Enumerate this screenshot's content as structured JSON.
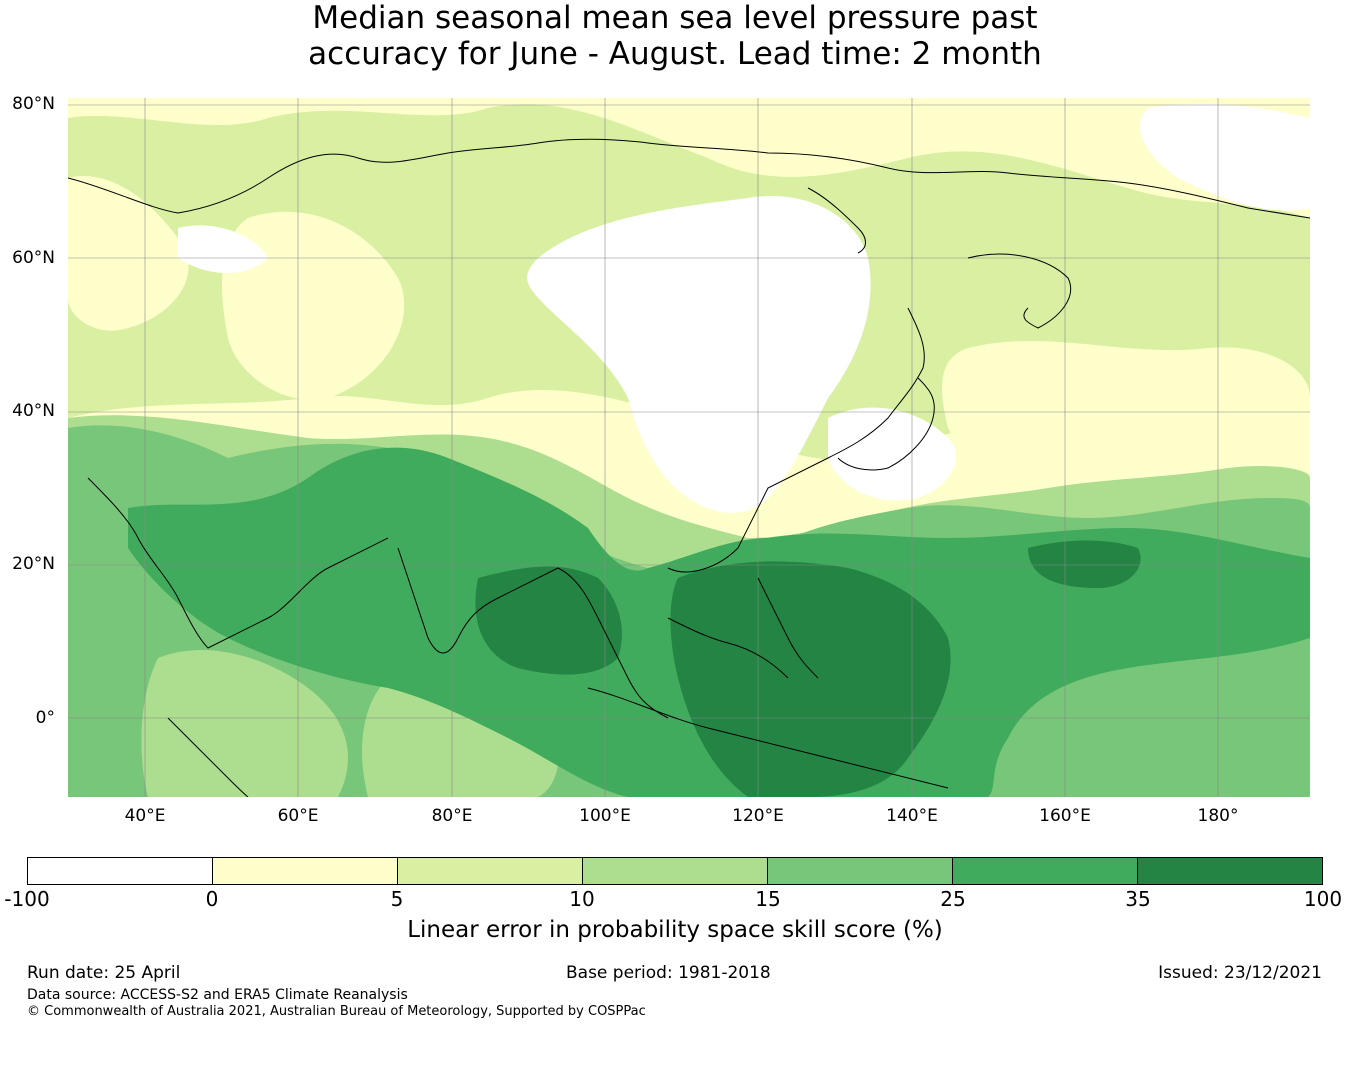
{
  "title": {
    "line1": "Median seasonal mean sea level pressure past",
    "line2": "accuracy for June - August. Lead time: 2 month"
  },
  "map": {
    "lat_labels": [
      "80°N",
      "60°N",
      "40°N",
      "20°N",
      "0°"
    ],
    "lon_labels": [
      "40°E",
      "60°E",
      "80°E",
      "100°E",
      "120°E",
      "140°E",
      "160°E",
      "180°"
    ],
    "lat_range": [
      -10,
      81
    ],
    "lon_range": [
      30,
      192
    ]
  },
  "colorbar": {
    "label": "Linear error in probability space skill score (%)",
    "ticks": [
      "-100",
      "0",
      "5",
      "10",
      "15",
      "25",
      "35",
      "100"
    ],
    "bins": [
      {
        "range": "-100 to 0",
        "color": "#ffffff"
      },
      {
        "range": "0 to 5",
        "color": "#ffffcc"
      },
      {
        "range": "5 to 10",
        "color": "#d9f0a3"
      },
      {
        "range": "10 to 15",
        "color": "#addd8e"
      },
      {
        "range": "15 to 25",
        "color": "#78c679"
      },
      {
        "range": "25 to 35",
        "color": "#41ab5d"
      },
      {
        "range": "35 to 100",
        "color": "#238443"
      }
    ]
  },
  "footer": {
    "run_date": "Run date: 25 April",
    "base_period": "Base period: 1981-2018",
    "issued": "Issued: 23/12/2021",
    "data_source": "Data source: ACCESS-S2 and ERA5 Climate Reanalysis",
    "copyright": "© Commonwealth of Australia 2021, Australian Bureau of Meteorology, Supported by COSPPac"
  }
}
